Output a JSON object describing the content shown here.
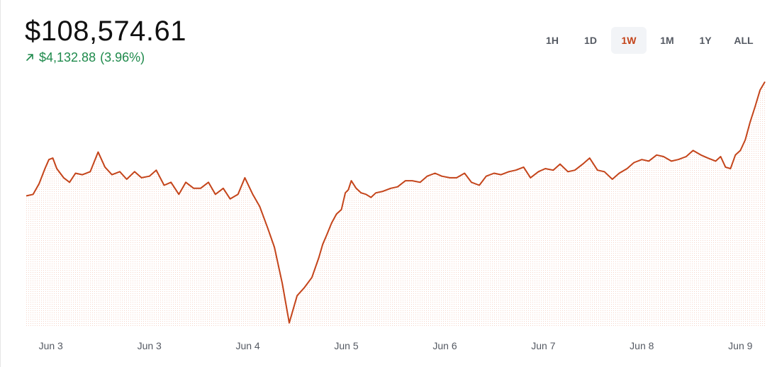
{
  "header": {
    "price": "$108,574.61",
    "change_amount": "$4,132.88",
    "change_percent": "(3.96%)",
    "change_direction": "up-right-arrow-icon",
    "up_color": "#1f8a4c"
  },
  "range_tabs": [
    {
      "label": "1H",
      "active": false
    },
    {
      "label": "1D",
      "active": false
    },
    {
      "label": "1W",
      "active": true
    },
    {
      "label": "1M",
      "active": false
    },
    {
      "label": "1Y",
      "active": false
    },
    {
      "label": "ALL",
      "active": false
    }
  ],
  "colors": {
    "line": "#c4441a",
    "fill_dots": "#f6d6cb",
    "active_tab_text": "#c4441a"
  },
  "chart_data": {
    "type": "area",
    "title": "",
    "xlabel": "",
    "ylabel": "",
    "x_tick_labels": [
      "Jun 3",
      "Jun 3",
      "Jun 4",
      "Jun 5",
      "Jun 6",
      "Jun 7",
      "Jun 8",
      "Jun 9"
    ],
    "x_tick_positions": [
      0.5,
      1.5,
      2.5,
      3.5,
      4.5,
      5.5,
      6.5,
      7.5
    ],
    "xlim": [
      0.25,
      7.75
    ],
    "ylim": [
      100500,
      108700
    ],
    "grid": false,
    "series": [
      {
        "x": [
          0.25,
          0.32,
          0.38,
          0.44,
          0.48,
          0.52,
          0.56,
          0.63,
          0.69,
          0.75,
          0.82,
          0.9,
          0.98,
          1.05,
          1.12,
          1.2,
          1.27,
          1.35,
          1.42,
          1.5,
          1.57,
          1.65,
          1.72,
          1.8,
          1.87,
          1.95,
          2.02,
          2.1,
          2.17,
          2.25,
          2.32,
          2.4,
          2.47,
          2.55,
          2.62,
          2.7,
          2.77,
          2.85,
          2.92,
          3.0,
          3.07,
          3.15,
          3.22,
          3.26,
          3.3,
          3.35,
          3.4,
          3.45,
          3.49,
          3.52,
          3.55,
          3.6,
          3.65,
          3.7,
          3.75,
          3.8,
          3.87,
          3.95,
          4.02,
          4.1,
          4.17,
          4.25,
          4.32,
          4.4,
          4.47,
          4.55,
          4.62,
          4.7,
          4.77,
          4.85,
          4.92,
          5.0,
          5.07,
          5.15,
          5.22,
          5.3,
          5.37,
          5.45,
          5.52,
          5.6,
          5.67,
          5.75,
          5.82,
          5.9,
          5.97,
          6.05,
          6.12,
          6.2,
          6.27,
          6.35,
          6.42,
          6.5,
          6.57,
          6.65,
          6.72,
          6.8,
          6.87,
          6.95,
          7.02,
          7.1,
          7.17,
          7.25,
          7.3,
          7.35,
          7.4,
          7.45,
          7.5,
          7.55,
          7.6,
          7.65,
          7.7,
          7.75
        ],
        "values": [
          104800,
          104850,
          105200,
          105700,
          106000,
          106050,
          105700,
          105400,
          105250,
          105550,
          105500,
          105600,
          106250,
          105750,
          105500,
          105600,
          105350,
          105600,
          105400,
          105450,
          105650,
          105150,
          105250,
          104850,
          105250,
          105050,
          105050,
          105250,
          104850,
          105050,
          104700,
          104850,
          105400,
          104850,
          104450,
          103750,
          103100,
          101900,
          100600,
          101500,
          101750,
          102100,
          102750,
          103200,
          103500,
          103900,
          104200,
          104350,
          104900,
          105000,
          105300,
          105050,
          104900,
          104850,
          104750,
          104900,
          104950,
          105050,
          105100,
          105300,
          105300,
          105250,
          105450,
          105550,
          105450,
          105400,
          105400,
          105550,
          105250,
          105150,
          105450,
          105550,
          105500,
          105600,
          105650,
          105750,
          105400,
          105600,
          105700,
          105650,
          105850,
          105600,
          105650,
          105850,
          106050,
          105650,
          105600,
          105350,
          105550,
          105700,
          105900,
          106000,
          105950,
          106150,
          106100,
          105950,
          106000,
          106100,
          106300,
          106150,
          106050,
          105950,
          106100,
          105750,
          105700,
          106150,
          106300,
          106650,
          107250,
          107750,
          108300,
          108574.61
        ]
      }
    ]
  }
}
